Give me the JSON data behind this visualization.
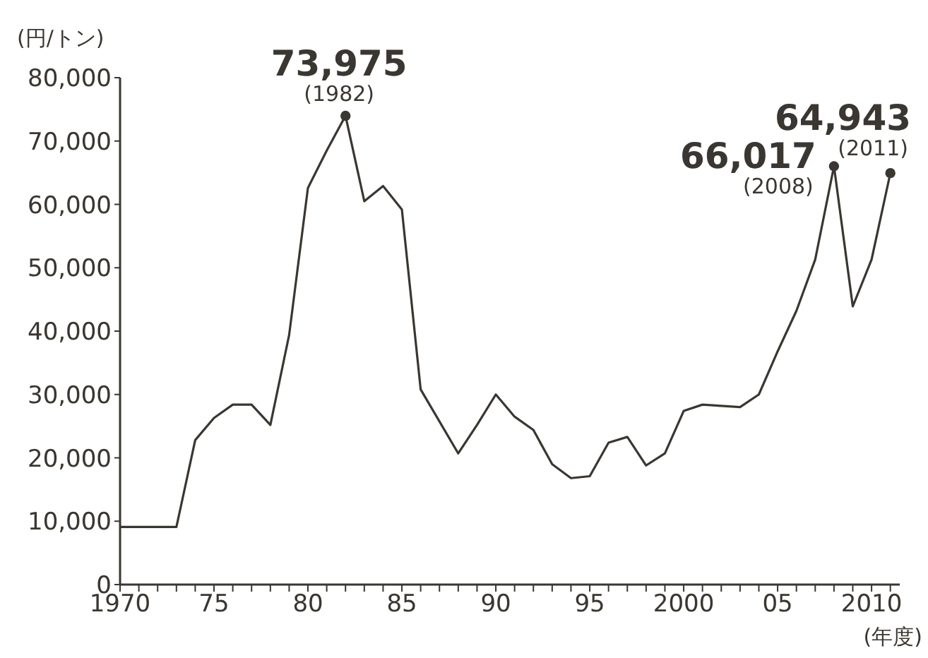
{
  "chart_data": {
    "type": "line",
    "ylabel": "(円/トン)",
    "xlabel": "(年度)",
    "xlim": [
      1970,
      2011.5
    ],
    "xticks": [
      1970,
      {
        "value": 1971,
        "label": null
      },
      {
        "value": 1972,
        "label": null
      },
      {
        "value": 1973,
        "label": null
      },
      {
        "value": 1974,
        "label": null
      },
      {
        "value": 1975,
        "label": "75"
      },
      {
        "value": 1976,
        "label": null
      },
      {
        "value": 1977,
        "label": null
      },
      {
        "value": 1978,
        "label": null
      },
      {
        "value": 1979,
        "label": null
      },
      {
        "value": 1980,
        "label": "80"
      },
      {
        "value": 1981,
        "label": null
      },
      {
        "value": 1982,
        "label": null
      },
      {
        "value": 1983,
        "label": null
      },
      {
        "value": 1984,
        "label": null
      },
      {
        "value": 1985,
        "label": "85"
      },
      {
        "value": 1986,
        "label": null
      },
      {
        "value": 1987,
        "label": null
      },
      {
        "value": 1988,
        "label": null
      },
      {
        "value": 1989,
        "label": null
      },
      {
        "value": 1990,
        "label": "90"
      },
      {
        "value": 1991,
        "label": null
      },
      {
        "value": 1992,
        "label": null
      },
      {
        "value": 1993,
        "label": null
      },
      {
        "value": 1994,
        "label": null
      },
      {
        "value": 1995,
        "label": "95"
      },
      {
        "value": 1996,
        "label": null
      },
      {
        "value": 1997,
        "label": null
      },
      {
        "value": 1998,
        "label": null
      },
      {
        "value": 1999,
        "label": null
      },
      2000,
      {
        "value": 2001,
        "label": null
      },
      {
        "value": 2002,
        "label": null
      },
      {
        "value": 2003,
        "label": null
      },
      {
        "value": 2004,
        "label": null
      },
      {
        "value": 2005,
        "label": "05"
      },
      {
        "value": 2006,
        "label": null
      },
      {
        "value": 2007,
        "label": null
      },
      {
        "value": 2008,
        "label": null
      },
      {
        "value": 2009,
        "label": null
      },
      2010,
      {
        "value": 2011,
        "label": null
      }
    ],
    "ylim": [
      0,
      80000
    ],
    "yticks": [
      0,
      {
        "value": 10000,
        "label": "10,000"
      },
      {
        "value": 20000,
        "label": "20,000"
      },
      {
        "value": 30000,
        "label": "30,000"
      },
      {
        "value": 40000,
        "label": "40,000"
      },
      {
        "value": 50000,
        "label": "50,000"
      },
      {
        "value": 60000,
        "label": "60,000"
      },
      {
        "value": 70000,
        "label": "70,000"
      },
      {
        "value": 80000,
        "label": "80,000"
      }
    ],
    "grid": false,
    "legend": false,
    "line_style": "solid",
    "series": [
      {
        "color": "#3a3631",
        "marker": "none",
        "x": [
          1970,
          1971,
          1972,
          1973,
          1974,
          1975,
          1976,
          1977,
          1978,
          1979,
          1980,
          1981,
          1982,
          1983,
          1984,
          1985,
          1986,
          1988,
          1989,
          1990,
          1991,
          1992,
          1993,
          1994,
          1995,
          1996,
          1997,
          1998,
          1999,
          2000,
          2001,
          2002,
          2003,
          2004,
          2005,
          2006,
          2007,
          2008,
          2009,
          2010,
          2011
        ],
        "values": [
          9100,
          9100,
          9100,
          9100,
          22800,
          26300,
          28400,
          28400,
          25200,
          39400,
          62600,
          68500,
          73975,
          60500,
          62900,
          59200,
          30800,
          20700,
          25200,
          30000,
          26500,
          24400,
          19000,
          16800,
          17100,
          22400,
          23300,
          18800,
          20700,
          27400,
          28400,
          28200,
          28000,
          30000,
          36800,
          43200,
          51300,
          66017,
          43900,
          51300,
          64943
        ]
      },
      {
        "type": "scatter",
        "marker": "circle",
        "color": "#3a3631",
        "x": [
          1982,
          2008,
          2011
        ],
        "values": [
          73975,
          66017,
          64943
        ],
        "value_labels": [
          "73,975",
          "66,017",
          "64,943"
        ]
      }
    ],
    "annotations": [
      {
        "text": "(1982)",
        "x": 1982,
        "y": 73975
      },
      {
        "text": "(2008)",
        "x": 2008,
        "y": 66017
      },
      {
        "text": "(2011)",
        "x": 2011,
        "y": 64943
      }
    ]
  }
}
